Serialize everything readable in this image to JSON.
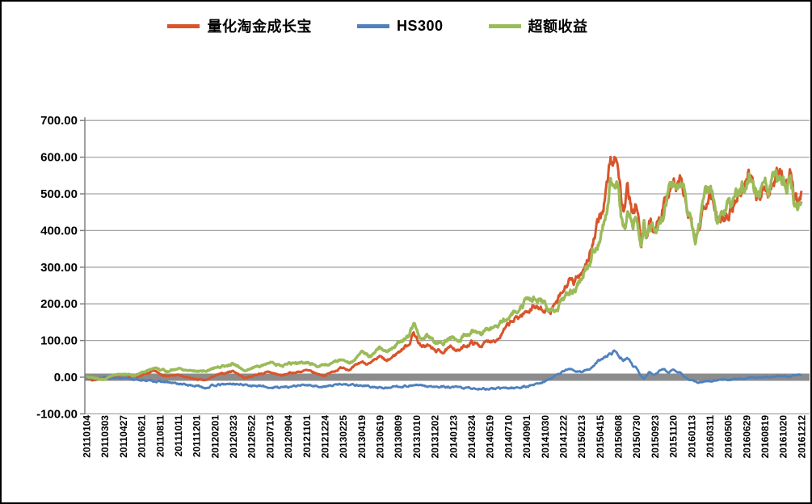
{
  "y_axis": {
    "tick_labels": [
      "700.00",
      "600.00",
      "500.00",
      "400.00",
      "300.00",
      "200.00",
      "100.00",
      "0.00",
      "-100.00"
    ]
  },
  "chart_data": {
    "type": "line",
    "title": "",
    "x_labels": [
      "20110104",
      "20110303",
      "20110427",
      "20110621",
      "20110811",
      "20111011",
      "20111201",
      "20120201",
      "20120323",
      "20120522",
      "20120713",
      "20120904",
      "20121101",
      "20121224",
      "20130225",
      "20130419",
      "20130619",
      "20130809",
      "20131010",
      "20131202",
      "20140123",
      "20140324",
      "20140519",
      "20140710",
      "20140901",
      "20141030",
      "20141222",
      "20150213",
      "20150415",
      "20150608",
      "20150730",
      "20150923",
      "20151120",
      "20160113",
      "20160311",
      "20160505",
      "20160629",
      "20160819",
      "20161020",
      "20161212"
    ],
    "ylim": [
      -100,
      700
    ],
    "y_tick_step": 100,
    "grid": "horizontal",
    "gridline_color": "#A6A6A6",
    "axis_color": "#808080",
    "zero_line": {
      "value": 0,
      "color": "#8C8C8C",
      "thickness": 9
    },
    "series": [
      {
        "name": "量化淘金成长宝",
        "color": "#D9542B",
        "keypoints": [
          [
            0,
            0
          ],
          [
            0.3,
            -8
          ],
          [
            0.7,
            -4
          ],
          [
            1,
            -6
          ],
          [
            1.5,
            2
          ],
          [
            2,
            6
          ],
          [
            2.5,
            0
          ],
          [
            3,
            4
          ],
          [
            3.7,
            16
          ],
          [
            4,
            10
          ],
          [
            4.5,
            3
          ],
          [
            5,
            6
          ],
          [
            5.5,
            -2
          ],
          [
            6,
            -6
          ],
          [
            6.5,
            -10
          ],
          [
            7,
            4
          ],
          [
            7.5,
            10
          ],
          [
            8,
            18
          ],
          [
            8.6,
            -2
          ],
          [
            9,
            3
          ],
          [
            9.5,
            10
          ],
          [
            10,
            13
          ],
          [
            10.7,
            4
          ],
          [
            11,
            10
          ],
          [
            12,
            18
          ],
          [
            12.5,
            10
          ],
          [
            13,
            5
          ],
          [
            13.5,
            16
          ],
          [
            14,
            28
          ],
          [
            14.4,
            20
          ],
          [
            15,
            42
          ],
          [
            15.5,
            36
          ],
          [
            16,
            55
          ],
          [
            16.4,
            42
          ],
          [
            17,
            68
          ],
          [
            17.6,
            92
          ],
          [
            17.85,
            122
          ],
          [
            18,
            108
          ],
          [
            18.3,
            80
          ],
          [
            18.6,
            88
          ],
          [
            19,
            72
          ],
          [
            19.5,
            70
          ],
          [
            20,
            82
          ],
          [
            20.3,
            72
          ],
          [
            21,
            95
          ],
          [
            21.5,
            86
          ],
          [
            22,
            100
          ],
          [
            22.5,
            108
          ],
          [
            23,
            140
          ],
          [
            23.5,
            162
          ],
          [
            24,
            178
          ],
          [
            24.4,
            196
          ],
          [
            24.7,
            184
          ],
          [
            25,
            190
          ],
          [
            25.3,
            176
          ],
          [
            25.6,
            196
          ],
          [
            26,
            230
          ],
          [
            26.3,
            262
          ],
          [
            26.6,
            252
          ],
          [
            27,
            290
          ],
          [
            27.4,
            330
          ],
          [
            27.7,
            372
          ],
          [
            28,
            432
          ],
          [
            28.2,
            468
          ],
          [
            28.45,
            540
          ],
          [
            28.6,
            598
          ],
          [
            28.7,
            572
          ],
          [
            28.9,
            620
          ],
          [
            29.05,
            552
          ],
          [
            29.2,
            478
          ],
          [
            29.35,
            450
          ],
          [
            29.5,
            508
          ],
          [
            29.65,
            478
          ],
          [
            29.8,
            424
          ],
          [
            29.95,
            470
          ],
          [
            30.1,
            438
          ],
          [
            30.25,
            342
          ],
          [
            30.4,
            416
          ],
          [
            30.55,
            382
          ],
          [
            30.7,
            422
          ],
          [
            31,
            402
          ],
          [
            31.2,
            440
          ],
          [
            31.5,
            468
          ],
          [
            31.8,
            520
          ],
          [
            32,
            536
          ],
          [
            32.2,
            514
          ],
          [
            32.4,
            540
          ],
          [
            32.6,
            498
          ],
          [
            32.8,
            442
          ],
          [
            33,
            420
          ],
          [
            33.2,
            350
          ],
          [
            33.4,
            400
          ],
          [
            33.6,
            452
          ],
          [
            33.8,
            492
          ],
          [
            34,
            516
          ],
          [
            34.2,
            498
          ],
          [
            34.4,
            416
          ],
          [
            34.6,
            432
          ],
          [
            34.8,
            446
          ],
          [
            35,
            456
          ],
          [
            35.3,
            476
          ],
          [
            35.6,
            502
          ],
          [
            35.9,
            522
          ],
          [
            36.1,
            554
          ],
          [
            36.4,
            532
          ],
          [
            36.7,
            486
          ],
          [
            37,
            524
          ],
          [
            37.2,
            506
          ],
          [
            37.5,
            542
          ],
          [
            37.8,
            554
          ],
          [
            38,
            546
          ],
          [
            38.2,
            520
          ],
          [
            38.4,
            548
          ],
          [
            38.6,
            474
          ],
          [
            38.8,
            494
          ],
          [
            39,
            504
          ]
        ]
      },
      {
        "name": "HS300",
        "color": "#4F81BD",
        "keypoints": [
          [
            0,
            0
          ],
          [
            0.5,
            -4
          ],
          [
            1,
            1
          ],
          [
            2,
            -3
          ],
          [
            3,
            -8
          ],
          [
            4,
            -12
          ],
          [
            5,
            -18
          ],
          [
            6,
            -24
          ],
          [
            6.5,
            -28
          ],
          [
            7,
            -22
          ],
          [
            8,
            -18
          ],
          [
            9,
            -22
          ],
          [
            10,
            -28
          ],
          [
            11,
            -26
          ],
          [
            12,
            -22
          ],
          [
            13,
            -26
          ],
          [
            14,
            -18
          ],
          [
            15,
            -22
          ],
          [
            16,
            -30
          ],
          [
            17,
            -25
          ],
          [
            18,
            -22
          ],
          [
            19,
            -27
          ],
          [
            20,
            -28
          ],
          [
            21,
            -30
          ],
          [
            22,
            -32
          ],
          [
            23,
            -30
          ],
          [
            24,
            -26
          ],
          [
            25,
            -12
          ],
          [
            25.5,
            2
          ],
          [
            26,
            16
          ],
          [
            26.3,
            24
          ],
          [
            26.6,
            17
          ],
          [
            27,
            16
          ],
          [
            27.5,
            22
          ],
          [
            28,
            46
          ],
          [
            28.5,
            60
          ],
          [
            28.9,
            74
          ],
          [
            29.1,
            58
          ],
          [
            29.3,
            48
          ],
          [
            29.5,
            54
          ],
          [
            29.8,
            32
          ],
          [
            30,
            26
          ],
          [
            30.2,
            5
          ],
          [
            30.4,
            -5
          ],
          [
            30.7,
            14
          ],
          [
            31,
            8
          ],
          [
            31.4,
            22
          ],
          [
            31.8,
            15
          ],
          [
            32,
            18
          ],
          [
            32.4,
            12
          ],
          [
            32.7,
            -2
          ],
          [
            33,
            -8
          ],
          [
            33.3,
            -15
          ],
          [
            33.6,
            -12
          ],
          [
            34,
            -11
          ],
          [
            34.5,
            -6
          ],
          [
            35,
            -7
          ],
          [
            35.5,
            -4
          ],
          [
            36,
            -3
          ],
          [
            36.5,
            -1
          ],
          [
            37,
            2
          ],
          [
            37.5,
            0
          ],
          [
            38,
            4
          ],
          [
            38.3,
            2
          ],
          [
            38.6,
            6
          ],
          [
            39,
            6
          ]
        ]
      },
      {
        "name": "超额收益",
        "color": "#9BBB59",
        "keypoints": [
          [
            0,
            1
          ],
          [
            0.5,
            -3
          ],
          [
            1,
            -6
          ],
          [
            1.5,
            6
          ],
          [
            2,
            9
          ],
          [
            2.5,
            4
          ],
          [
            3,
            12
          ],
          [
            3.7,
            26
          ],
          [
            4,
            22
          ],
          [
            4.5,
            16
          ],
          [
            5,
            24
          ],
          [
            5.5,
            20
          ],
          [
            6,
            18
          ],
          [
            6.5,
            16
          ],
          [
            7,
            26
          ],
          [
            7.5,
            30
          ],
          [
            8,
            36
          ],
          [
            8.6,
            18
          ],
          [
            9,
            25
          ],
          [
            9.5,
            32
          ],
          [
            10,
            41
          ],
          [
            10.7,
            31
          ],
          [
            11,
            36
          ],
          [
            12,
            40
          ],
          [
            12.5,
            34
          ],
          [
            13,
            31
          ],
          [
            13.5,
            42
          ],
          [
            14,
            46
          ],
          [
            14.4,
            38
          ],
          [
            15,
            64
          ],
          [
            15.5,
            58
          ],
          [
            16,
            85
          ],
          [
            16.4,
            70
          ],
          [
            17,
            93
          ],
          [
            17.6,
            116
          ],
          [
            17.85,
            145
          ],
          [
            18,
            130
          ],
          [
            18.3,
            103
          ],
          [
            18.6,
            112
          ],
          [
            19,
            99
          ],
          [
            19.5,
            97
          ],
          [
            20,
            110
          ],
          [
            20.3,
            100
          ],
          [
            21,
            125
          ],
          [
            21.5,
            116
          ],
          [
            22,
            132
          ],
          [
            22.5,
            140
          ],
          [
            23,
            170
          ],
          [
            23.5,
            190
          ],
          [
            24,
            204
          ],
          [
            24.4,
            218
          ],
          [
            24.7,
            206
          ],
          [
            25,
            202
          ],
          [
            25.3,
            186
          ],
          [
            25.6,
            194
          ],
          [
            26,
            214
          ],
          [
            26.3,
            238
          ],
          [
            26.6,
            235
          ],
          [
            27,
            274
          ],
          [
            27.4,
            308
          ],
          [
            27.7,
            350
          ],
          [
            28,
            386
          ],
          [
            28.2,
            420
          ],
          [
            28.45,
            480
          ],
          [
            28.6,
            538
          ],
          [
            28.7,
            512
          ],
          [
            28.9,
            546
          ],
          [
            29.05,
            494
          ],
          [
            29.2,
            430
          ],
          [
            29.35,
            402
          ],
          [
            29.5,
            454
          ],
          [
            29.65,
            436
          ],
          [
            29.8,
            392
          ],
          [
            29.95,
            438
          ],
          [
            30.1,
            412
          ],
          [
            30.25,
            337
          ],
          [
            30.4,
            421
          ],
          [
            30.55,
            387
          ],
          [
            30.7,
            408
          ],
          [
            31,
            394
          ],
          [
            31.2,
            424
          ],
          [
            31.5,
            446
          ],
          [
            31.8,
            505
          ],
          [
            32,
            518
          ],
          [
            32.2,
            502
          ],
          [
            32.4,
            528
          ],
          [
            32.6,
            500
          ],
          [
            32.8,
            444
          ],
          [
            33,
            428
          ],
          [
            33.2,
            365
          ],
          [
            33.4,
            413
          ],
          [
            33.6,
            464
          ],
          [
            33.8,
            503
          ],
          [
            34,
            527
          ],
          [
            34.2,
            509
          ],
          [
            34.4,
            422
          ],
          [
            34.6,
            438
          ],
          [
            34.8,
            452
          ],
          [
            35,
            463
          ],
          [
            35.3,
            483
          ],
          [
            35.6,
            506
          ],
          [
            35.9,
            517
          ],
          [
            36.1,
            546
          ],
          [
            36.4,
            524
          ],
          [
            36.7,
            481
          ],
          [
            37,
            522
          ],
          [
            37.2,
            504
          ],
          [
            37.5,
            540
          ],
          [
            37.8,
            546
          ],
          [
            38,
            542
          ],
          [
            38.2,
            516
          ],
          [
            38.4,
            544
          ],
          [
            38.6,
            468
          ],
          [
            38.8,
            486
          ],
          [
            39,
            482
          ]
        ]
      }
    ]
  }
}
